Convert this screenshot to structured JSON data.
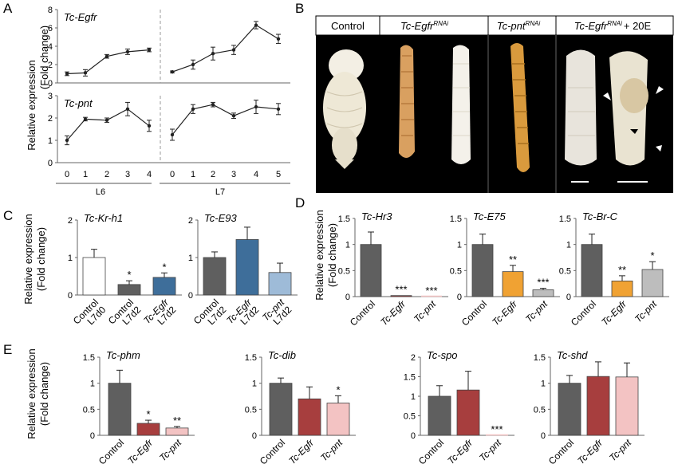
{
  "panel_letters": [
    "A",
    "B",
    "C",
    "D",
    "E"
  ],
  "colors": {
    "control_dark": "#5f5f5f",
    "egfr_blue": "#3e6e9a",
    "pnt_lightblue": "#9ebbd8",
    "orange": "#f0a233",
    "light_gray": "#bdbdbd",
    "dark_red": "#a73e3e",
    "pink": "#f3c3c3",
    "line": "#333333"
  },
  "panelA": {
    "ylabel_line1": "Relative expression",
    "ylabel_line2": "(Fold change)",
    "stage_labels": [
      "L6",
      "L7"
    ]
  },
  "panelB": {
    "headers": [
      "Control",
      "Tc-Egfr",
      "Tc-pnt",
      "Tc-Egfr",
      "+ 20E"
    ],
    "superscripts": [
      "RNAi",
      "RNAi",
      "RNAi"
    ]
  },
  "panelC_ylabel": [
    "Relative expression",
    "(Fold change)"
  ],
  "panelD_ylabel": [
    "Relative expression",
    "(Fold change)"
  ],
  "panelE_ylabel": [
    "Relative expression",
    "(Fold change)"
  ],
  "chart_data": [
    {
      "id": "A1",
      "type": "line",
      "title": "Tc-Egfr",
      "ylim": [
        0,
        8
      ],
      "yticks": [
        0,
        2,
        4,
        6,
        8
      ],
      "segments": [
        {
          "x": [
            0,
            1,
            2,
            3,
            4
          ],
          "values": [
            1.0,
            1.1,
            2.9,
            3.4,
            3.6
          ],
          "errors": [
            0.2,
            0.35,
            0.2,
            0.3,
            0.2
          ]
        },
        {
          "x": [
            0,
            1,
            2,
            3,
            4,
            5
          ],
          "values": [
            1.2,
            2.0,
            3.2,
            3.6,
            6.3,
            4.8
          ],
          "errors": [
            0.1,
            0.5,
            0.7,
            0.5,
            0.4,
            0.5
          ]
        }
      ]
    },
    {
      "id": "A2",
      "type": "line",
      "title": "Tc-pnt",
      "ylim": [
        0,
        3
      ],
      "yticks": [
        0,
        1,
        2,
        3
      ],
      "xticks_L6": [
        "0",
        "1",
        "2",
        "3",
        "4"
      ],
      "xticks_L7": [
        "0",
        "1",
        "2",
        "3",
        "4",
        "5"
      ],
      "segments": [
        {
          "x": [
            0,
            1,
            2,
            3,
            4
          ],
          "values": [
            1.0,
            1.95,
            1.9,
            2.4,
            1.65
          ],
          "errors": [
            0.2,
            0.08,
            0.1,
            0.3,
            0.25
          ]
        },
        {
          "x": [
            0,
            1,
            2,
            3,
            4,
            5
          ],
          "values": [
            1.25,
            2.4,
            2.6,
            2.1,
            2.5,
            2.4
          ],
          "errors": [
            0.25,
            0.2,
            0.1,
            0.12,
            0.3,
            0.25
          ]
        }
      ]
    },
    {
      "id": "C1",
      "type": "bar",
      "title": "Tc-Kr-h1",
      "ylim": [
        0,
        2
      ],
      "yticks": [
        "0",
        "1",
        "2"
      ],
      "categories": [
        [
          "Control",
          "L7d0"
        ],
        [
          "Control",
          "L7d2"
        ],
        [
          "Tc-Egfr",
          "L7d2"
        ]
      ],
      "values": [
        1.0,
        0.28,
        0.47
      ],
      "errors": [
        0.22,
        0.1,
        0.12
      ],
      "stars": [
        "",
        "*",
        "*"
      ],
      "colors": [
        "#ffffff",
        "#5f5f5f",
        "#3e6e9a"
      ]
    },
    {
      "id": "C2",
      "type": "bar",
      "title": "Tc-E93",
      "ylim": [
        0,
        2
      ],
      "yticks": [
        "0",
        "1",
        "2"
      ],
      "categories": [
        [
          "Control",
          "L7d2"
        ],
        [
          "Tc-Egfr",
          "L7d2"
        ],
        [
          "Tc-pnt",
          "L7d2"
        ]
      ],
      "values": [
        1.0,
        1.48,
        0.6
      ],
      "errors": [
        0.15,
        0.33,
        0.25
      ],
      "stars": [
        "",
        "",
        ""
      ],
      "colors": [
        "#5f5f5f",
        "#3e6e9a",
        "#9ebbd8"
      ]
    },
    {
      "id": "D1",
      "type": "bar",
      "title": "Tc-Hr3",
      "ylim": [
        0,
        1.5
      ],
      "yticks": [
        "0",
        "0.5",
        "1",
        "1.5"
      ],
      "categories": [
        "Control",
        "Tc-Egfr",
        "Tc-pnt"
      ],
      "values": [
        1.0,
        0.02,
        0.0
      ],
      "errors": [
        0.24,
        0.0,
        0.0
      ],
      "stars": [
        "",
        "***",
        "***"
      ],
      "colors": [
        "#5f5f5f",
        "#a73e3e",
        "#f3c3c3"
      ]
    },
    {
      "id": "D2",
      "type": "bar",
      "title": "Tc-E75",
      "ylim": [
        0,
        1.5
      ],
      "yticks": [
        "0",
        "0.5",
        "1",
        "1.5"
      ],
      "categories": [
        "Control",
        "Tc-Egfr",
        "Tc-pnt"
      ],
      "values": [
        1.0,
        0.48,
        0.13
      ],
      "errors": [
        0.2,
        0.12,
        0.03
      ],
      "stars": [
        "",
        "**",
        "***"
      ],
      "colors": [
        "#5f5f5f",
        "#f0a233",
        "#bdbdbd"
      ]
    },
    {
      "id": "D3",
      "type": "bar",
      "title": "Tc-Br-C",
      "ylim": [
        0,
        1.5
      ],
      "yticks": [
        "0",
        "0.5",
        "1",
        "1.5"
      ],
      "categories": [
        "Control",
        "Tc-Egfr",
        "Tc-pnt"
      ],
      "values": [
        1.0,
        0.3,
        0.52
      ],
      "errors": [
        0.2,
        0.1,
        0.15
      ],
      "stars": [
        "",
        "**",
        "*"
      ],
      "colors": [
        "#5f5f5f",
        "#f0a233",
        "#bdbdbd"
      ]
    },
    {
      "id": "E1",
      "type": "bar",
      "title": "Tc-phm",
      "ylim": [
        0,
        1.5
      ],
      "yticks": [
        "0",
        "0.5",
        "1",
        "1.5"
      ],
      "categories": [
        "Control",
        "Tc-Egfr",
        "Tc-pnt"
      ],
      "values": [
        1.0,
        0.23,
        0.14
      ],
      "errors": [
        0.25,
        0.06,
        0.03
      ],
      "stars": [
        "",
        "*",
        "**"
      ],
      "colors": [
        "#5f5f5f",
        "#a73e3e",
        "#f3c3c3"
      ]
    },
    {
      "id": "E2",
      "type": "bar",
      "title": "Tc-dib",
      "ylim": [
        0,
        1.5
      ],
      "yticks": [
        "0",
        "0.5",
        "1",
        "1.5"
      ],
      "categories": [
        "Control",
        "Tc-Egfr",
        "Tc-pnt"
      ],
      "values": [
        1.0,
        0.7,
        0.62
      ],
      "errors": [
        0.1,
        0.23,
        0.14
      ],
      "stars": [
        "",
        "",
        "*"
      ],
      "colors": [
        "#5f5f5f",
        "#a73e3e",
        "#f3c3c3"
      ]
    },
    {
      "id": "E3",
      "type": "bar",
      "title": "Tc-spo",
      "ylim": [
        0,
        2
      ],
      "yticks": [
        "0",
        "0.5",
        "1",
        "1.5",
        "2"
      ],
      "categories": [
        "Control",
        "Tc-Egfr",
        "Tc-pnt"
      ],
      "values": [
        1.0,
        1.16,
        0.0
      ],
      "errors": [
        0.27,
        0.48,
        0.0
      ],
      "stars": [
        "",
        "",
        "***"
      ],
      "colors": [
        "#5f5f5f",
        "#a73e3e",
        "#f3c3c3"
      ]
    },
    {
      "id": "E4",
      "type": "bar",
      "title": "Tc-shd",
      "ylim": [
        0,
        1.5
      ],
      "yticks": [
        "0",
        "0.5",
        "1",
        "1.5"
      ],
      "categories": [
        "Control",
        "Tc-Egfr",
        "Tc-pnt"
      ],
      "values": [
        1.0,
        1.13,
        1.12
      ],
      "errors": [
        0.15,
        0.28,
        0.27
      ],
      "stars": [
        "",
        "",
        ""
      ],
      "colors": [
        "#5f5f5f",
        "#a73e3e",
        "#f3c3c3"
      ]
    }
  ]
}
